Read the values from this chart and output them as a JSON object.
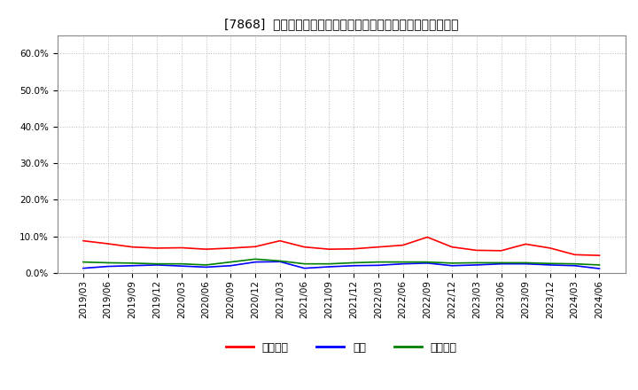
{
  "title": "[7868]  売上債権、在庫、買入債務の総資産に対する比率の推移",
  "ylim": [
    0.0,
    0.65
  ],
  "yticks": [
    0.0,
    0.1,
    0.2,
    0.3,
    0.4,
    0.5,
    0.6
  ],
  "x_labels": [
    "2019/03",
    "2019/06",
    "2019/09",
    "2019/12",
    "2020/03",
    "2020/06",
    "2020/09",
    "2020/12",
    "2021/03",
    "2021/06",
    "2021/09",
    "2021/12",
    "2022/03",
    "2022/06",
    "2022/09",
    "2022/12",
    "2023/03",
    "2023/06",
    "2023/09",
    "2023/12",
    "2024/03",
    "2024/06"
  ],
  "series_names": [
    "売上債権",
    "在庫",
    "買入債務"
  ],
  "series_colors": [
    "#ff0000",
    "#0000ff",
    "#008000"
  ],
  "series_values": [
    [
      0.088,
      0.08,
      0.071,
      0.068,
      0.069,
      0.065,
      0.068,
      0.072,
      0.088,
      0.071,
      0.065,
      0.066,
      0.071,
      0.076,
      0.098,
      0.071,
      0.062,
      0.061,
      0.079,
      0.068,
      0.05,
      0.048
    ],
    [
      0.013,
      0.018,
      0.02,
      0.022,
      0.019,
      0.016,
      0.02,
      0.03,
      0.031,
      0.013,
      0.017,
      0.02,
      0.021,
      0.025,
      0.027,
      0.02,
      0.022,
      0.025,
      0.025,
      0.022,
      0.02,
      0.012
    ],
    [
      0.03,
      0.028,
      0.027,
      0.025,
      0.025,
      0.022,
      0.03,
      0.038,
      0.033,
      0.025,
      0.025,
      0.028,
      0.03,
      0.03,
      0.03,
      0.027,
      0.028,
      0.028,
      0.028,
      0.026,
      0.025,
      0.022
    ]
  ],
  "background_color": "#ffffff",
  "grid_color": "#aaaaaa",
  "title_fontsize": 10,
  "tick_fontsize": 7.5,
  "legend_fontsize": 9
}
